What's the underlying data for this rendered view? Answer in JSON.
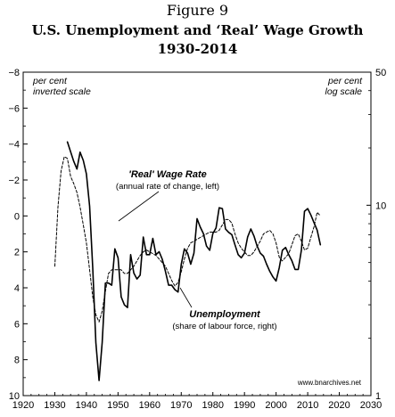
{
  "figure_label": "Figure 9",
  "title_line1": "U.S. Unemployment and ‘Real’ Wage Growth",
  "title_line2": "1930-2014",
  "left_axis_note": [
    "per cent",
    "inverted scale"
  ],
  "right_axis_note": [
    "per cent",
    "log scale"
  ],
  "source": "www.bnarchives.net",
  "chart_data": {
    "type": "line",
    "x_ticks": [
      "1920",
      "1930",
      "1940",
      "1950",
      "1960",
      "1970",
      "1980",
      "1990",
      "2000",
      "2010",
      "2020",
      "2030"
    ],
    "left_ticks": [
      "−8",
      "−6",
      "−4",
      "−2",
      "0",
      "2",
      "4",
      "6",
      "8",
      "10"
    ],
    "right_ticks": [
      "50",
      "10",
      "1"
    ],
    "xlim": [
      1920,
      2030
    ],
    "left_ylim": [
      -8,
      10
    ],
    "left_inverted": true,
    "right_log": true,
    "right_log_map": [
      {
        "value": 50,
        "left_equiv": -8
      },
      {
        "value": 10,
        "left_equiv": -0.5
      },
      {
        "value": 1,
        "left_equiv": 10
      }
    ],
    "series": [
      {
        "name": "Unemployment",
        "annotation_title": "Unemployment",
        "annotation_sub": "(share of labour force, right)",
        "axis": "right",
        "style": "solid",
        "x": [
          1934,
          1936,
          1937,
          1938,
          1939,
          1940,
          1941,
          1942,
          1943,
          1944,
          1945,
          1946,
          1947,
          1948,
          1949,
          1950,
          1951,
          1952,
          1953,
          1954,
          1955,
          1956,
          1957,
          1958,
          1959,
          1960,
          1961,
          1962,
          1963,
          1964,
          1965,
          1966,
          1967,
          1968,
          1969,
          1970,
          1971,
          1972,
          1973,
          1974,
          1975,
          1976,
          1977,
          1978,
          1979,
          1980,
          1981,
          1982,
          1983,
          1984,
          1985,
          1986,
          1987,
          1988,
          1989,
          1990,
          1991,
          1992,
          1993,
          1994,
          1995,
          1996,
          1997,
          1998,
          1999,
          2000,
          2001,
          2002,
          2003,
          2004,
          2005,
          2006,
          2007,
          2008,
          2009,
          2010,
          2011,
          2012,
          2013,
          2014
        ],
        "y": [
          21.5,
          17,
          15.5,
          19,
          17.2,
          14.6,
          9.9,
          4.7,
          1.9,
          1.2,
          1.9,
          3.9,
          3.9,
          3.8,
          5.9,
          5.3,
          3.3,
          3.0,
          2.9,
          5.5,
          4.4,
          4.1,
          4.3,
          6.8,
          5.5,
          5.5,
          6.7,
          5.5,
          5.7,
          5.2,
          4.5,
          3.8,
          3.8,
          3.6,
          3.5,
          4.9,
          5.9,
          5.6,
          4.9,
          5.6,
          8.5,
          7.7,
          7.1,
          6.1,
          5.8,
          7.1,
          7.6,
          9.7,
          9.6,
          7.5,
          7.2,
          7.0,
          6.2,
          5.5,
          5.3,
          5.6,
          6.8,
          7.5,
          6.9,
          6.1,
          5.6,
          5.4,
          4.9,
          4.5,
          4.2,
          4.0,
          4.7,
          5.8,
          6.0,
          5.5,
          5.1,
          4.6,
          4.6,
          5.8,
          9.3,
          9.6,
          8.9,
          8.1,
          7.4,
          6.2
        ]
      },
      {
        "name": "'Real' Wage Rate",
        "annotation_title": "'Real'  Wage Rate",
        "annotation_sub": "(annual rate of change, left)",
        "axis": "left",
        "style": "dashed",
        "x": [
          1930,
          1931,
          1932,
          1933,
          1934,
          1935,
          1936,
          1937,
          1938,
          1939,
          1940,
          1941,
          1942,
          1943,
          1944,
          1945,
          1946,
          1947,
          1948,
          1949,
          1950,
          1951,
          1952,
          1953,
          1954,
          1955,
          1956,
          1957,
          1958,
          1959,
          1960,
          1961,
          1962,
          1963,
          1964,
          1965,
          1966,
          1967,
          1968,
          1969,
          1970,
          1971,
          1972,
          1973,
          1974,
          1975,
          1976,
          1977,
          1978,
          1979,
          1980,
          1981,
          1982,
          1983,
          1984,
          1985,
          1986,
          1987,
          1988,
          1989,
          1990,
          1991,
          1992,
          1993,
          1994,
          1995,
          1996,
          1997,
          1998,
          1999,
          2000,
          2001,
          2002,
          2003,
          2004,
          2005,
          2006,
          2007,
          2008,
          2009,
          2010,
          2011,
          2012,
          2013,
          2014
        ],
        "y": [
          2.8,
          -0.5,
          -2.5,
          -3.3,
          -3.2,
          -2.2,
          -1.8,
          -1.3,
          -0.5,
          0.5,
          1.5,
          3.0,
          4.5,
          5.5,
          5.9,
          5.3,
          4.2,
          3.2,
          3.0,
          3.0,
          3.0,
          3.0,
          3.2,
          3.2,
          3.0,
          2.8,
          2.5,
          2.2,
          2.0,
          1.9,
          2.0,
          2.1,
          2.2,
          2.4,
          2.6,
          2.8,
          3.2,
          3.6,
          3.9,
          3.7,
          3.1,
          2.4,
          1.8,
          1.5,
          1.4,
          1.3,
          1.2,
          1.1,
          1.0,
          0.9,
          0.9,
          0.9,
          0.8,
          0.5,
          0.2,
          0.2,
          0.4,
          1.0,
          1.5,
          1.8,
          2.0,
          2.2,
          2.2,
          2.0,
          1.7,
          1.4,
          1.0,
          0.9,
          0.8,
          1.0,
          1.5,
          2.3,
          2.5,
          2.3,
          2.1,
          1.6,
          1.1,
          1.0,
          1.4,
          1.9,
          1.8,
          1.2,
          0.6,
          -0.2,
          0.0
        ]
      }
    ]
  }
}
